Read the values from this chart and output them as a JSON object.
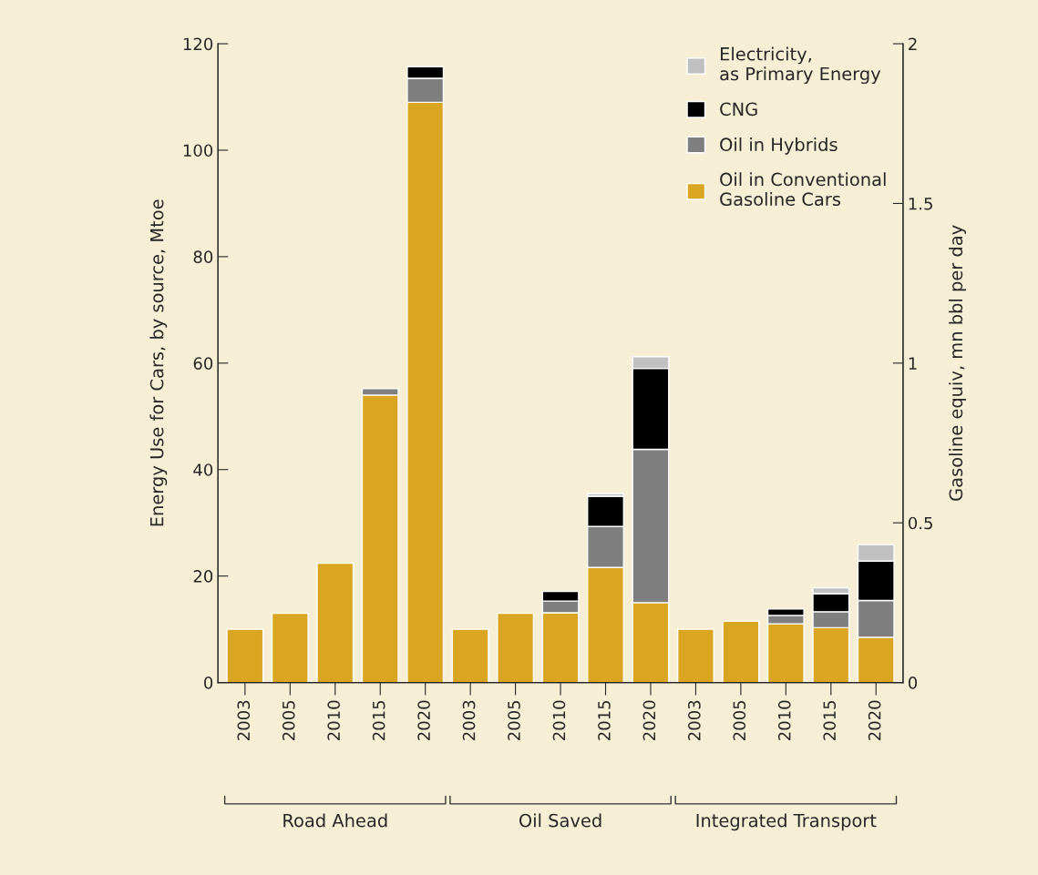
{
  "chart_data": {
    "type": "bar",
    "stacked": true,
    "categories": [
      "2003",
      "2005",
      "2010",
      "2015",
      "2020",
      "2003",
      "2005",
      "2010",
      "2015",
      "2020",
      "2003",
      "2005",
      "2010",
      "2015",
      "2020"
    ],
    "series": [
      {
        "name": "Oil in Conventional\nGasoline Cars",
        "color": "#daa520",
        "values": [
          10,
          13,
          22.4,
          54,
          109,
          10,
          13,
          13.1,
          21.6,
          15,
          10,
          11.5,
          11,
          10.3,
          8.5
        ]
      },
      {
        "name": "Oil in Hybrids",
        "color": "#7f7f7f",
        "values": [
          null,
          null,
          null,
          1.2,
          4.5,
          null,
          null,
          2.2,
          7.7,
          28.8,
          null,
          null,
          1.6,
          3,
          6.9
        ]
      },
      {
        "name": "CNG",
        "color": "#000000",
        "values": [
          null,
          null,
          null,
          null,
          2.2,
          null,
          null,
          1.8,
          5.7,
          15.2,
          null,
          null,
          1.2,
          3.4,
          7.4
        ]
      },
      {
        "name": "Electricity,\nas Primary Energy",
        "color": "#c0c0c0",
        "values": [
          null,
          null,
          null,
          null,
          null,
          null,
          null,
          null,
          0.5,
          2.2,
          null,
          null,
          null,
          1.1,
          3.1
        ]
      }
    ],
    "ylabel": "Energy Use for Cars, by source, Mtoe",
    "y2label": "Gasoline equiv, mn bbl per day",
    "ylim": [
      0,
      120
    ],
    "yticks": [
      0,
      20,
      40,
      60,
      80,
      100,
      120
    ],
    "y2lim": [
      0,
      2
    ],
    "y2ticks": [
      0,
      0.5,
      1,
      1.5,
      2
    ],
    "annotations": [
      "Road Ahead",
      "Oil Saved",
      "Integrated Transport"
    ],
    "legend": "top right",
    "grid": false
  }
}
